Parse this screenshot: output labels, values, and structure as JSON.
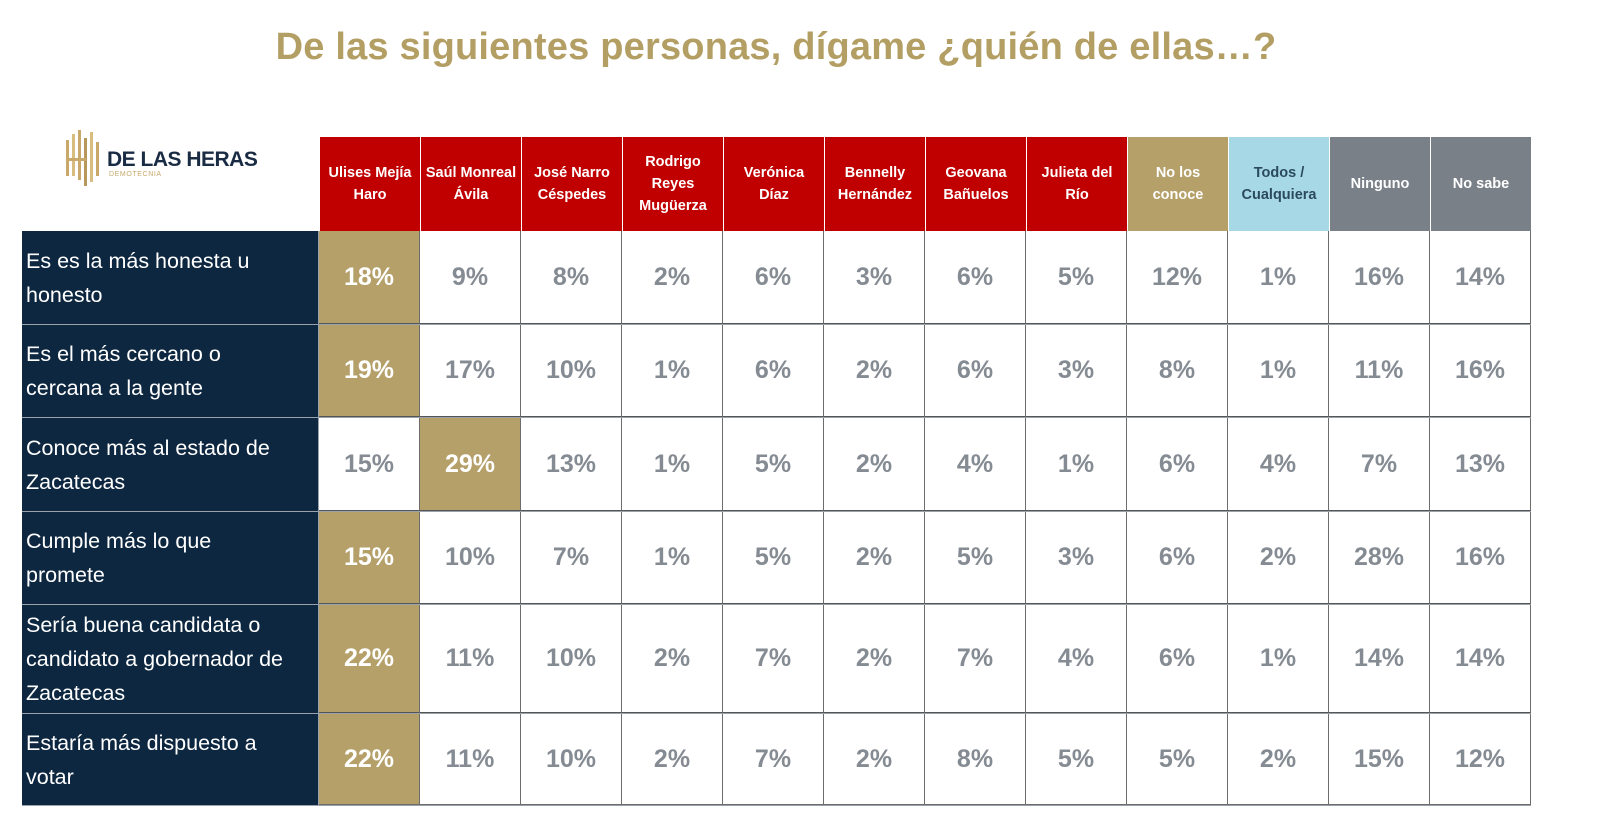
{
  "title": "De las siguientes personas, dígame ¿quién de ellas…?",
  "logo": {
    "brand": "DE LAS HERAS",
    "subtitle": "DEMOTECNIA",
    "icon": "building-columns-logo-icon"
  },
  "colors": {
    "candidate_header": "#c00000",
    "no_los_conoce_header": "#b5a06a",
    "todos_header": "#a6d8e6",
    "ninguno_header": "#7a8088",
    "row_label_bg": "#0e2740",
    "highlight": "#b5a06a",
    "title": "#b39e63",
    "value_text": "#858b92"
  },
  "columns": [
    {
      "label": "Ulises Mejía\nHaro",
      "type": "candidate"
    },
    {
      "label": "Saúl Monreal\nÁvila",
      "type": "candidate"
    },
    {
      "label": "José Narro\nCéspedes",
      "type": "candidate"
    },
    {
      "label": "Rodrigo\nReyes\nMugüerza",
      "type": "candidate"
    },
    {
      "label": "Verónica\nDíaz",
      "type": "candidate"
    },
    {
      "label": "Bennelly\nHernández",
      "type": "candidate"
    },
    {
      "label": "Geovana\nBañuelos",
      "type": "candidate"
    },
    {
      "label": "Julieta del\nRío",
      "type": "candidate"
    },
    {
      "label": "No los\nconoce",
      "type": "unknown"
    },
    {
      "label": "Todos /\nCualquiera",
      "type": "all"
    },
    {
      "label": "Ninguno",
      "type": "none"
    },
    {
      "label": "No sabe",
      "type": "none"
    }
  ],
  "rows": [
    {
      "label": "Es es la más honesta u\nhonesto",
      "values": [
        "18%",
        "9%",
        "8%",
        "2%",
        "6%",
        "3%",
        "6%",
        "5%",
        "12%",
        "1%",
        "16%",
        "14%"
      ],
      "highlight": 0
    },
    {
      "label": "Es el más cercano o\ncercana a la gente",
      "values": [
        "19%",
        "17%",
        "10%",
        "1%",
        "6%",
        "2%",
        "6%",
        "3%",
        "8%",
        "1%",
        "11%",
        "16%"
      ],
      "highlight": 0
    },
    {
      "label": "Conoce más al estado de\nZacatecas",
      "values": [
        "15%",
        "29%",
        "13%",
        "1%",
        "5%",
        "2%",
        "4%",
        "1%",
        "6%",
        "4%",
        "7%",
        "13%"
      ],
      "highlight": 1
    },
    {
      "label": "Cumple más lo que\npromete",
      "values": [
        "15%",
        "10%",
        "7%",
        "1%",
        "5%",
        "2%",
        "5%",
        "3%",
        "6%",
        "2%",
        "28%",
        "16%"
      ],
      "highlight": 0
    },
    {
      "label": "Sería buena candidata o\ncandidato a gobernador de\nZacatecas",
      "values": [
        "22%",
        "11%",
        "10%",
        "2%",
        "7%",
        "2%",
        "7%",
        "4%",
        "6%",
        "1%",
        "14%",
        "14%"
      ],
      "highlight": 0
    },
    {
      "label": "Estaría más dispuesto a\nvotar",
      "values": [
        "22%",
        "11%",
        "10%",
        "2%",
        "7%",
        "2%",
        "8%",
        "5%",
        "5%",
        "2%",
        "15%",
        "12%"
      ],
      "highlight": 0
    }
  ]
}
